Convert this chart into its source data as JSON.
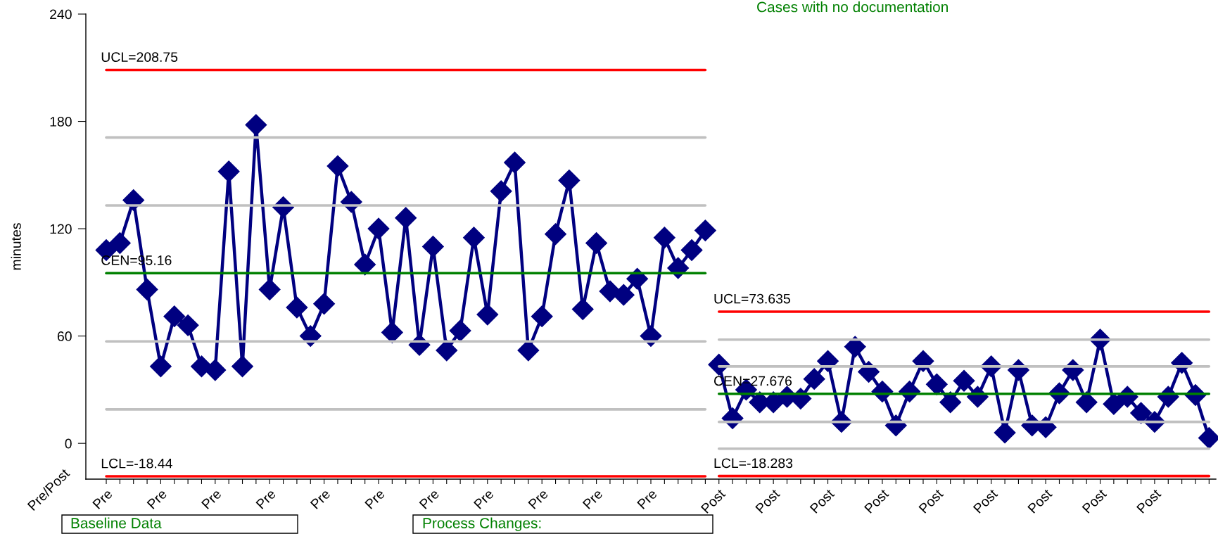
{
  "chart_data": {
    "type": "line",
    "xlabel": "Pre/Post",
    "ylabel": "minutes",
    "annotations": [
      "Cases with no documentation",
      "Baseline Data",
      "Process Changes:"
    ],
    "categories": [
      "Pre",
      null,
      null,
      null,
      "Pre",
      null,
      null,
      null,
      "Pre",
      null,
      null,
      null,
      "Pre",
      null,
      null,
      null,
      "Pre",
      null,
      null,
      null,
      "Pre",
      null,
      null,
      null,
      "Pre",
      null,
      null,
      null,
      "Pre",
      null,
      null,
      null,
      "Pre",
      null,
      null,
      null,
      "Pre",
      null,
      null,
      null,
      "Pre",
      null,
      null,
      null,
      null,
      "Post",
      null,
      null,
      null,
      "Post",
      null,
      null,
      null,
      "Post",
      null,
      null,
      null,
      "Post",
      null,
      null,
      null,
      "Post",
      null,
      null,
      null,
      "Post",
      null,
      null,
      null,
      "Post",
      null,
      null,
      null,
      "Post",
      null,
      null,
      null,
      "Post",
      null,
      null,
      null,
      null
    ],
    "ylim": [
      -20,
      240
    ],
    "yticks": [
      0,
      60,
      120,
      180,
      240
    ],
    "grid": false,
    "legend": false,
    "series": [
      {
        "color": "#c0c0c0",
        "values": [
          171,
          171,
          171,
          171,
          171,
          171,
          171,
          171,
          171,
          171,
          171,
          171,
          171,
          171,
          171,
          171,
          171,
          171,
          171,
          171,
          171,
          171,
          171,
          171,
          171,
          171,
          171,
          171,
          171,
          171,
          171,
          171,
          171,
          171,
          171,
          171,
          171,
          171,
          171,
          171,
          171,
          171,
          171,
          171,
          171,
          null,
          null,
          null,
          null,
          null,
          null,
          null,
          null,
          null,
          null,
          null,
          null,
          null,
          null,
          null,
          null,
          null,
          null,
          null,
          null,
          null,
          null,
          null,
          null,
          null,
          null,
          null,
          null,
          null,
          null,
          null,
          null,
          null,
          null,
          null,
          null,
          null
        ]
      },
      {
        "color": "#c0c0c0",
        "values": [
          133,
          133,
          133,
          133,
          133,
          133,
          133,
          133,
          133,
          133,
          133,
          133,
          133,
          133,
          133,
          133,
          133,
          133,
          133,
          133,
          133,
          133,
          133,
          133,
          133,
          133,
          133,
          133,
          133,
          133,
          133,
          133,
          133,
          133,
          133,
          133,
          133,
          133,
          133,
          133,
          133,
          133,
          133,
          133,
          133,
          null,
          null,
          null,
          null,
          null,
          null,
          null,
          null,
          null,
          null,
          null,
          null,
          null,
          null,
          null,
          null,
          null,
          null,
          null,
          null,
          null,
          null,
          null,
          null,
          null,
          null,
          null,
          null,
          null,
          null,
          null,
          null,
          null,
          null,
          null,
          null,
          null
        ]
      },
      {
        "color": "#c0c0c0",
        "values": [
          57,
          57,
          57,
          57,
          57,
          57,
          57,
          57,
          57,
          57,
          57,
          57,
          57,
          57,
          57,
          57,
          57,
          57,
          57,
          57,
          57,
          57,
          57,
          57,
          57,
          57,
          57,
          57,
          57,
          57,
          57,
          57,
          57,
          57,
          57,
          57,
          57,
          57,
          57,
          57,
          57,
          57,
          57,
          57,
          57,
          null,
          null,
          null,
          null,
          null,
          null,
          null,
          null,
          null,
          null,
          null,
          null,
          null,
          null,
          null,
          null,
          null,
          null,
          null,
          null,
          null,
          null,
          null,
          null,
          null,
          null,
          null,
          null,
          null,
          null,
          null,
          null,
          null,
          null,
          null,
          null,
          null
        ]
      },
      {
        "color": "#c0c0c0",
        "values": [
          19,
          19,
          19,
          19,
          19,
          19,
          19,
          19,
          19,
          19,
          19,
          19,
          19,
          19,
          19,
          19,
          19,
          19,
          19,
          19,
          19,
          19,
          19,
          19,
          19,
          19,
          19,
          19,
          19,
          19,
          19,
          19,
          19,
          19,
          19,
          19,
          19,
          19,
          19,
          19,
          19,
          19,
          19,
          19,
          19,
          null,
          null,
          null,
          null,
          null,
          null,
          null,
          null,
          null,
          null,
          null,
          null,
          null,
          null,
          null,
          null,
          null,
          null,
          null,
          null,
          null,
          null,
          null,
          null,
          null,
          null,
          null,
          null,
          null,
          null,
          null,
          null,
          null,
          null,
          null,
          null,
          null
        ]
      },
      {
        "color": "#c0c0c0",
        "values": [
          null,
          null,
          null,
          null,
          null,
          null,
          null,
          null,
          null,
          null,
          null,
          null,
          null,
          null,
          null,
          null,
          null,
          null,
          null,
          null,
          null,
          null,
          null,
          null,
          null,
          null,
          null,
          null,
          null,
          null,
          null,
          null,
          null,
          null,
          null,
          null,
          null,
          null,
          null,
          null,
          null,
          null,
          null,
          null,
          null,
          58,
          58,
          58,
          58,
          58,
          58,
          58,
          58,
          58,
          58,
          58,
          58,
          58,
          58,
          58,
          58,
          58,
          58,
          58,
          58,
          58,
          58,
          58,
          58,
          58,
          58,
          58,
          58,
          58,
          58,
          58,
          58,
          58,
          58,
          58,
          58,
          58
        ]
      },
      {
        "color": "#c0c0c0",
        "values": [
          null,
          null,
          null,
          null,
          null,
          null,
          null,
          null,
          null,
          null,
          null,
          null,
          null,
          null,
          null,
          null,
          null,
          null,
          null,
          null,
          null,
          null,
          null,
          null,
          null,
          null,
          null,
          null,
          null,
          null,
          null,
          null,
          null,
          null,
          null,
          null,
          null,
          null,
          null,
          null,
          null,
          null,
          null,
          null,
          null,
          43,
          43,
          43,
          43,
          43,
          43,
          43,
          43,
          43,
          43,
          43,
          43,
          43,
          43,
          43,
          43,
          43,
          43,
          43,
          43,
          43,
          43,
          43,
          43,
          43,
          43,
          43,
          43,
          43,
          43,
          43,
          43,
          43,
          43,
          43,
          43,
          43
        ]
      },
      {
        "color": "#c0c0c0",
        "values": [
          null,
          null,
          null,
          null,
          null,
          null,
          null,
          null,
          null,
          null,
          null,
          null,
          null,
          null,
          null,
          null,
          null,
          null,
          null,
          null,
          null,
          null,
          null,
          null,
          null,
          null,
          null,
          null,
          null,
          null,
          null,
          null,
          null,
          null,
          null,
          null,
          null,
          null,
          null,
          null,
          null,
          null,
          null,
          null,
          null,
          12,
          12,
          12,
          12,
          12,
          12,
          12,
          12,
          12,
          12,
          12,
          12,
          12,
          12,
          12,
          12,
          12,
          12,
          12,
          12,
          12,
          12,
          12,
          12,
          12,
          12,
          12,
          12,
          12,
          12,
          12,
          12,
          12,
          12,
          12,
          12,
          12
        ]
      },
      {
        "color": "#c0c0c0",
        "values": [
          null,
          null,
          null,
          null,
          null,
          null,
          null,
          null,
          null,
          null,
          null,
          null,
          null,
          null,
          null,
          null,
          null,
          null,
          null,
          null,
          null,
          null,
          null,
          null,
          null,
          null,
          null,
          null,
          null,
          null,
          null,
          null,
          null,
          null,
          null,
          null,
          null,
          null,
          null,
          null,
          null,
          null,
          null,
          null,
          null,
          -3,
          -3,
          -3,
          -3,
          -3,
          -3,
          -3,
          -3,
          -3,
          -3,
          -3,
          -3,
          -3,
          -3,
          -3,
          -3,
          -3,
          -3,
          -3,
          -3,
          -3,
          -3,
          -3,
          -3,
          -3,
          -3,
          -3,
          -3,
          -3,
          -3,
          -3,
          -3,
          -3,
          -3,
          -3,
          -3,
          -3
        ]
      },
      {
        "name": "UCL=208.75",
        "color": "#ff0000",
        "values": [
          208.75,
          208.75,
          208.75,
          208.75,
          208.75,
          208.75,
          208.75,
          208.75,
          208.75,
          208.75,
          208.75,
          208.75,
          208.75,
          208.75,
          208.75,
          208.75,
          208.75,
          208.75,
          208.75,
          208.75,
          208.75,
          208.75,
          208.75,
          208.75,
          208.75,
          208.75,
          208.75,
          208.75,
          208.75,
          208.75,
          208.75,
          208.75,
          208.75,
          208.75,
          208.75,
          208.75,
          208.75,
          208.75,
          208.75,
          208.75,
          208.75,
          208.75,
          208.75,
          208.75,
          208.75,
          null,
          null,
          null,
          null,
          null,
          null,
          null,
          null,
          null,
          null,
          null,
          null,
          null,
          null,
          null,
          null,
          null,
          null,
          null,
          null,
          null,
          null,
          null,
          null,
          null,
          null,
          null,
          null,
          null,
          null,
          null,
          null,
          null,
          null,
          null,
          null,
          null
        ]
      },
      {
        "name": "CEN=95.16",
        "color": "#008000",
        "values": [
          95.16,
          95.16,
          95.16,
          95.16,
          95.16,
          95.16,
          95.16,
          95.16,
          95.16,
          95.16,
          95.16,
          95.16,
          95.16,
          95.16,
          95.16,
          95.16,
          95.16,
          95.16,
          95.16,
          95.16,
          95.16,
          95.16,
          95.16,
          95.16,
          95.16,
          95.16,
          95.16,
          95.16,
          95.16,
          95.16,
          95.16,
          95.16,
          95.16,
          95.16,
          95.16,
          95.16,
          95.16,
          95.16,
          95.16,
          95.16,
          95.16,
          95.16,
          95.16,
          95.16,
          95.16,
          null,
          null,
          null,
          null,
          null,
          null,
          null,
          null,
          null,
          null,
          null,
          null,
          null,
          null,
          null,
          null,
          null,
          null,
          null,
          null,
          null,
          null,
          null,
          null,
          null,
          null,
          null,
          null,
          null,
          null,
          null,
          null,
          null,
          null,
          null,
          null,
          null
        ]
      },
      {
        "name": "LCL=-18.44",
        "color": "#ff0000",
        "values": [
          -18.44,
          -18.44,
          -18.44,
          -18.44,
          -18.44,
          -18.44,
          -18.44,
          -18.44,
          -18.44,
          -18.44,
          -18.44,
          -18.44,
          -18.44,
          -18.44,
          -18.44,
          -18.44,
          -18.44,
          -18.44,
          -18.44,
          -18.44,
          -18.44,
          -18.44,
          -18.44,
          -18.44,
          -18.44,
          -18.44,
          -18.44,
          -18.44,
          -18.44,
          -18.44,
          -18.44,
          -18.44,
          -18.44,
          -18.44,
          -18.44,
          -18.44,
          -18.44,
          -18.44,
          -18.44,
          -18.44,
          -18.44,
          -18.44,
          -18.44,
          -18.44,
          -18.44,
          null,
          null,
          null,
          null,
          null,
          null,
          null,
          null,
          null,
          null,
          null,
          null,
          null,
          null,
          null,
          null,
          null,
          null,
          null,
          null,
          null,
          null,
          null,
          null,
          null,
          null,
          null,
          null,
          null,
          null,
          null,
          null,
          null,
          null,
          null,
          null,
          null
        ]
      },
      {
        "name": "UCL=73.635",
        "color": "#ff0000",
        "values": [
          null,
          null,
          null,
          null,
          null,
          null,
          null,
          null,
          null,
          null,
          null,
          null,
          null,
          null,
          null,
          null,
          null,
          null,
          null,
          null,
          null,
          null,
          null,
          null,
          null,
          null,
          null,
          null,
          null,
          null,
          null,
          null,
          null,
          null,
          null,
          null,
          null,
          null,
          null,
          null,
          null,
          null,
          null,
          null,
          null,
          73.635,
          73.635,
          73.635,
          73.635,
          73.635,
          73.635,
          73.635,
          73.635,
          73.635,
          73.635,
          73.635,
          73.635,
          73.635,
          73.635,
          73.635,
          73.635,
          73.635,
          73.635,
          73.635,
          73.635,
          73.635,
          73.635,
          73.635,
          73.635,
          73.635,
          73.635,
          73.635,
          73.635,
          73.635,
          73.635,
          73.635,
          73.635,
          73.635,
          73.635,
          73.635,
          73.635,
          73.635
        ]
      },
      {
        "name": "CEN=27.676",
        "color": "#008000",
        "values": [
          null,
          null,
          null,
          null,
          null,
          null,
          null,
          null,
          null,
          null,
          null,
          null,
          null,
          null,
          null,
          null,
          null,
          null,
          null,
          null,
          null,
          null,
          null,
          null,
          null,
          null,
          null,
          null,
          null,
          null,
          null,
          null,
          null,
          null,
          null,
          null,
          null,
          null,
          null,
          null,
          null,
          null,
          null,
          null,
          null,
          27.676,
          27.676,
          27.676,
          27.676,
          27.676,
          27.676,
          27.676,
          27.676,
          27.676,
          27.676,
          27.676,
          27.676,
          27.676,
          27.676,
          27.676,
          27.676,
          27.676,
          27.676,
          27.676,
          27.676,
          27.676,
          27.676,
          27.676,
          27.676,
          27.676,
          27.676,
          27.676,
          27.676,
          27.676,
          27.676,
          27.676,
          27.676,
          27.676,
          27.676,
          27.676,
          27.676,
          27.676
        ]
      },
      {
        "name": "LCL=-18.283",
        "color": "#ff0000",
        "values": [
          null,
          null,
          null,
          null,
          null,
          null,
          null,
          null,
          null,
          null,
          null,
          null,
          null,
          null,
          null,
          null,
          null,
          null,
          null,
          null,
          null,
          null,
          null,
          null,
          null,
          null,
          null,
          null,
          null,
          null,
          null,
          null,
          null,
          null,
          null,
          null,
          null,
          null,
          null,
          null,
          null,
          null,
          null,
          null,
          null,
          -18.283,
          -18.283,
          -18.283,
          -18.283,
          -18.283,
          -18.283,
          -18.283,
          -18.283,
          -18.283,
          -18.283,
          -18.283,
          -18.283,
          -18.283,
          -18.283,
          -18.283,
          -18.283,
          -18.283,
          -18.283,
          -18.283,
          -18.283,
          -18.283,
          -18.283,
          -18.283,
          -18.283,
          -18.283,
          -18.283,
          -18.283,
          -18.283,
          -18.283,
          -18.283,
          -18.283,
          -18.283,
          -18.283,
          -18.283,
          -18.283,
          -18.283,
          -18.283
        ]
      },
      {
        "color": "#000080",
        "marker": "diamond",
        "values": [
          108,
          112,
          136,
          86,
          43,
          71,
          66,
          43,
          41,
          152,
          43,
          178,
          86,
          132,
          76,
          60,
          78,
          155,
          135,
          100,
          120,
          62,
          126,
          55,
          110,
          52,
          63,
          115,
          72,
          141,
          157,
          52,
          71,
          117,
          147,
          75,
          112,
          85,
          83,
          92,
          60,
          115,
          98,
          108,
          119,
          null,
          null,
          null,
          null,
          null,
          null,
          null,
          null,
          null,
          null,
          null,
          null,
          null,
          null,
          null,
          null,
          null,
          null,
          null,
          null,
          null,
          null,
          null,
          null,
          null,
          null,
          null,
          null,
          null,
          null,
          null,
          null,
          null,
          null,
          null,
          null,
          null
        ]
      },
      {
        "color": "#000080",
        "marker": "diamond",
        "values": [
          null,
          null,
          null,
          null,
          null,
          null,
          null,
          null,
          null,
          null,
          null,
          null,
          null,
          null,
          null,
          null,
          null,
          null,
          null,
          null,
          null,
          null,
          null,
          null,
          null,
          null,
          null,
          null,
          null,
          null,
          null,
          null,
          null,
          null,
          null,
          null,
          null,
          null,
          null,
          null,
          null,
          null,
          null,
          null,
          null,
          44,
          14,
          30,
          23,
          23,
          26,
          25,
          36,
          46,
          12,
          54,
          40,
          29,
          10,
          29,
          46,
          33,
          23,
          35,
          26,
          43,
          6,
          41,
          10,
          9,
          28,
          41,
          23,
          58,
          22,
          26,
          17,
          12,
          26,
          45,
          27,
          3
        ]
      }
    ]
  }
}
